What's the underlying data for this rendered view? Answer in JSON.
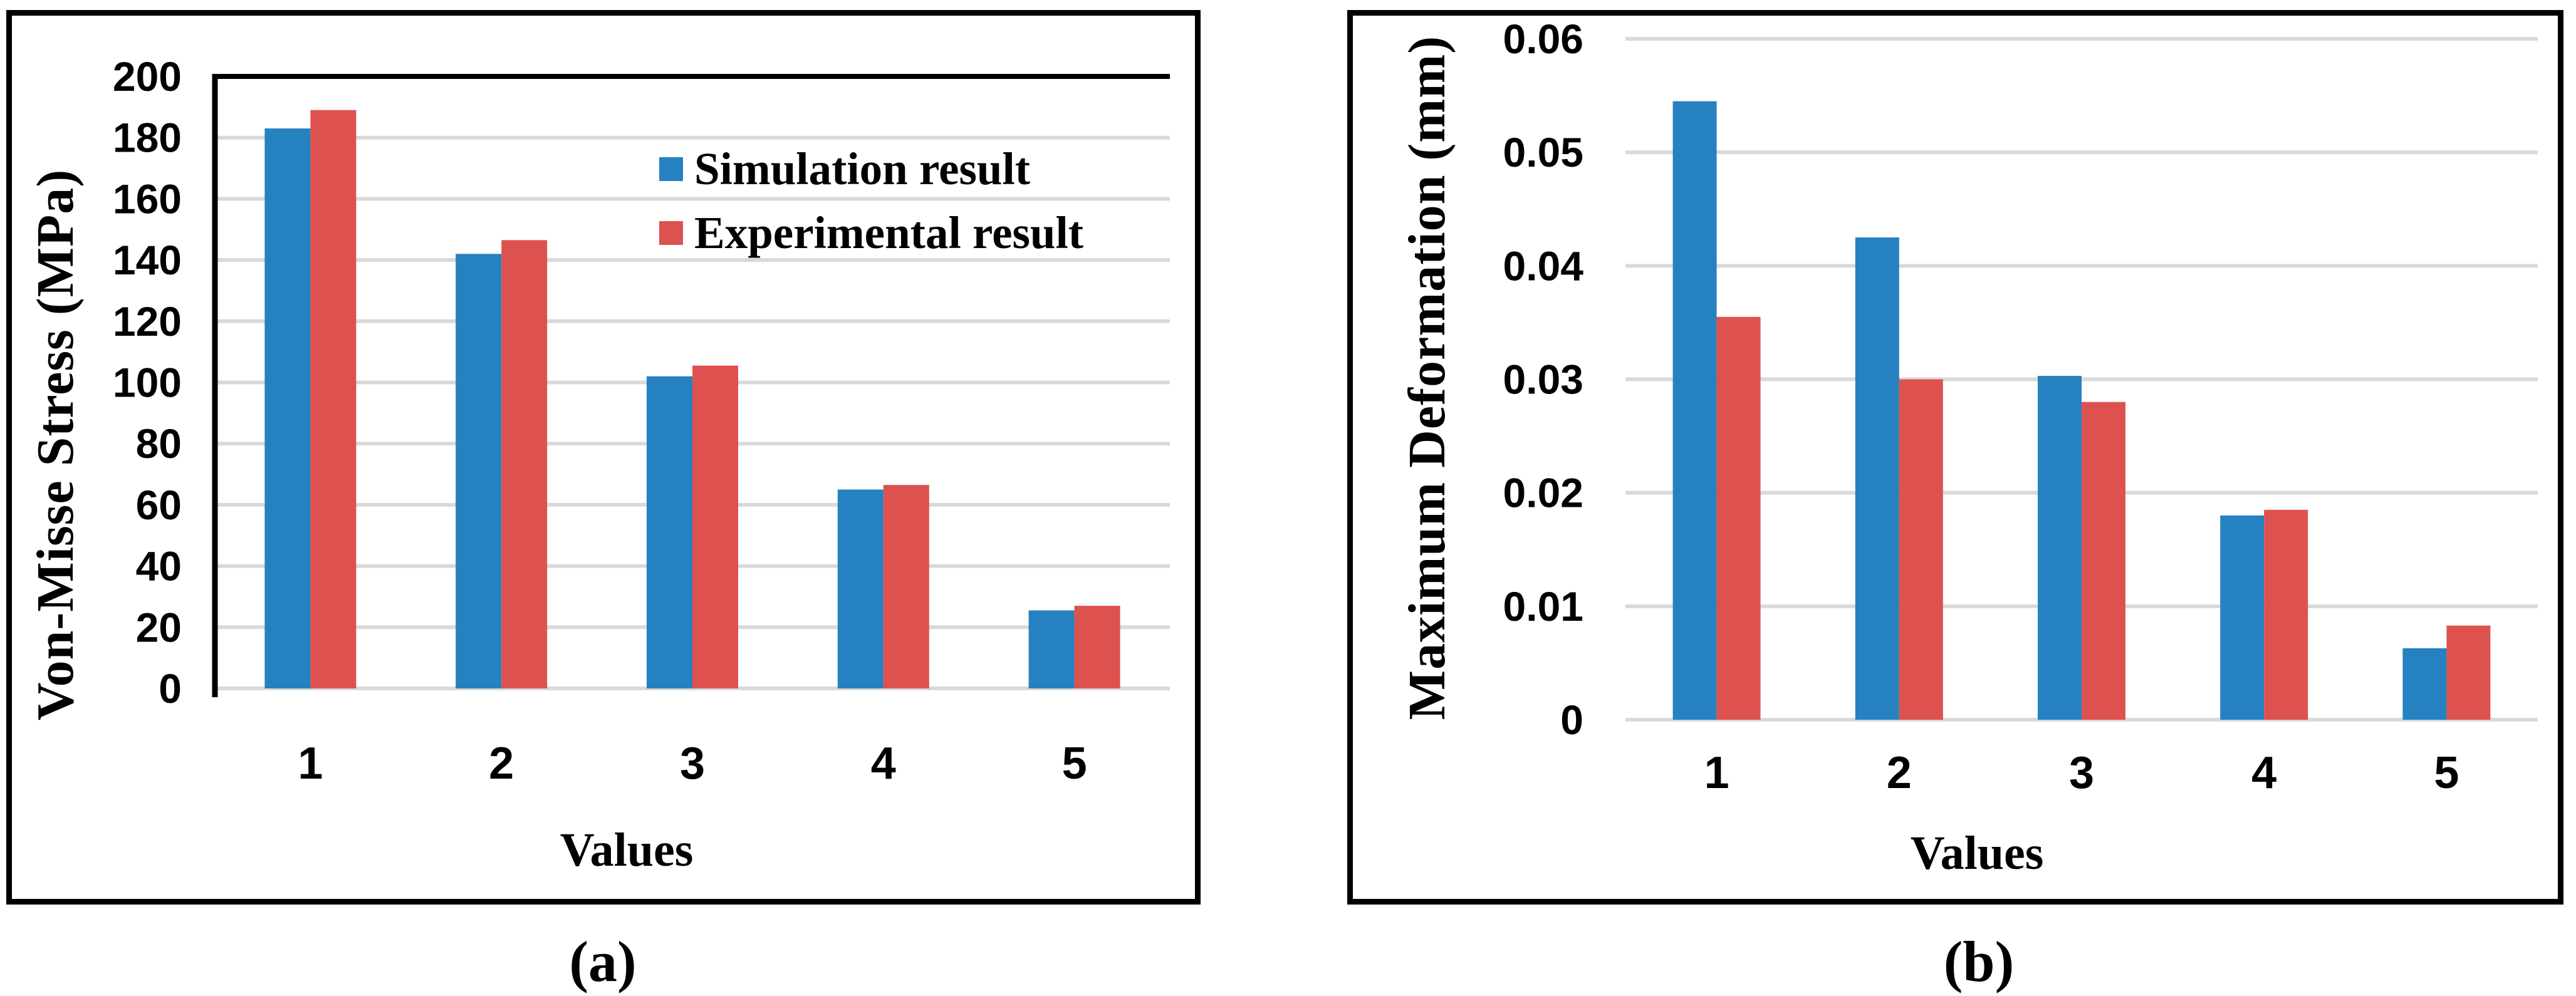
{
  "figure": {
    "captions": {
      "a": "(a)",
      "b": "(b)"
    }
  },
  "colors": {
    "simulation_blue": "#2681c0",
    "experimental_red": "#dd524f",
    "gridline_gray": "#d9d9d9",
    "axis_black": "#000000"
  },
  "chart_data": [
    {
      "panel": "a",
      "type": "bar",
      "title": "",
      "xlabel": "Values",
      "ylabel": "Von-Misse Stress (MPa)",
      "categories": [
        "1",
        "2",
        "3",
        "4",
        "5"
      ],
      "series": [
        {
          "name": "Simulation result",
          "color": "#2681c0",
          "values": [
            183,
            142,
            102,
            65,
            25.5
          ]
        },
        {
          "name": "Experimental result",
          "color": "#dd524f",
          "values": [
            189,
            146.5,
            105.5,
            66.5,
            27
          ]
        }
      ],
      "ylim": [
        0,
        200
      ],
      "yticks": [
        {
          "v": 0,
          "label": "0"
        },
        {
          "v": 20,
          "label": "20"
        },
        {
          "v": 40,
          "label": "40"
        },
        {
          "v": 60,
          "label": "60"
        },
        {
          "v": 80,
          "label": "80"
        },
        {
          "v": 100,
          "label": "100"
        },
        {
          "v": 120,
          "label": "120"
        },
        {
          "v": 140,
          "label": "140"
        },
        {
          "v": 160,
          "label": "160"
        },
        {
          "v": 180,
          "label": "180"
        },
        {
          "v": 200,
          "label": "200"
        }
      ],
      "grid": true,
      "legend_position": "inside top-right"
    },
    {
      "panel": "b",
      "type": "bar",
      "title": "",
      "xlabel": "Values",
      "ylabel": "Maximum Deformation (mm)",
      "categories": [
        "1",
        "2",
        "3",
        "4",
        "5"
      ],
      "series": [
        {
          "name": "Simulation result",
          "color": "#2681c0",
          "values": [
            0.0545,
            0.0425,
            0.0303,
            0.018,
            0.0063
          ]
        },
        {
          "name": "Experimental result",
          "color": "#dd524f",
          "values": [
            0.0355,
            0.03,
            0.028,
            0.0185,
            0.0083
          ]
        }
      ],
      "ylim": [
        0,
        0.06
      ],
      "yticks": [
        {
          "v": 0,
          "label": "0"
        },
        {
          "v": 0.01,
          "label": "0.01"
        },
        {
          "v": 0.02,
          "label": "0.02"
        },
        {
          "v": 0.03,
          "label": "0.03"
        },
        {
          "v": 0.04,
          "label": "0.04"
        },
        {
          "v": 0.05,
          "label": "0.05"
        },
        {
          "v": 0.06,
          "label": "0.06"
        }
      ],
      "grid": true,
      "legend_position": "none"
    }
  ]
}
